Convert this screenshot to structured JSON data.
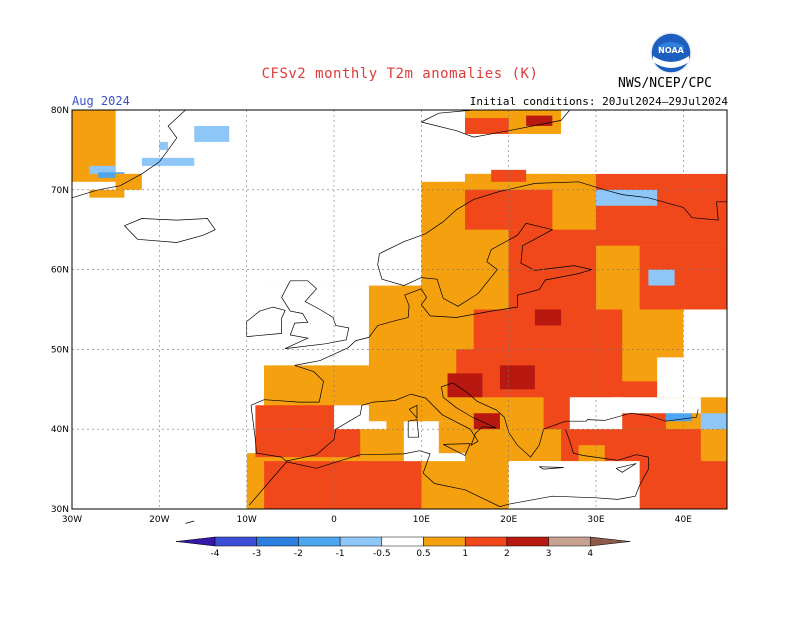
{
  "title": "CFSv2 monthly T2m anomalies (K)",
  "period": "Aug 2024",
  "initial_conditions": "Initial conditions: 20Jul2024–29Jul2024",
  "agency": "NWS/NCEP/CPC",
  "logo_text": "NOAA",
  "map": {
    "lon_range": [
      -30,
      45
    ],
    "lat_range": [
      30,
      80
    ],
    "lon_ticks": [
      "30W",
      "20W",
      "10W",
      "0",
      "10E",
      "20E",
      "30E",
      "40E"
    ],
    "lat_ticks": [
      "30N",
      "40N",
      "50N",
      "60N",
      "70N",
      "80N"
    ],
    "grid": true
  },
  "legend": {
    "labels": [
      "-4",
      "-3",
      "-2",
      "-1",
      "-0.5",
      "0.5",
      "1",
      "2",
      "3",
      "4"
    ],
    "colors": [
      "#3418a8",
      "#3a4fd4",
      "#2a7fe0",
      "#4ea6f0",
      "#8dc6f7",
      "#ffffff",
      "#f5a10f",
      "#f0471b",
      "#b81810",
      "#c8a090",
      "#8a5a4a"
    ]
  },
  "anomaly_regions": [
    {
      "category": "0.5-1",
      "color": "#f5a10f"
    },
    {
      "category": "1-2",
      "color": "#f0471b"
    },
    {
      "category": "2-3",
      "color": "#b81810"
    },
    {
      "category": "-1--0.5",
      "color": "#8dc6f7"
    },
    {
      "category": "-2--1",
      "color": "#4ea6f0"
    }
  ]
}
